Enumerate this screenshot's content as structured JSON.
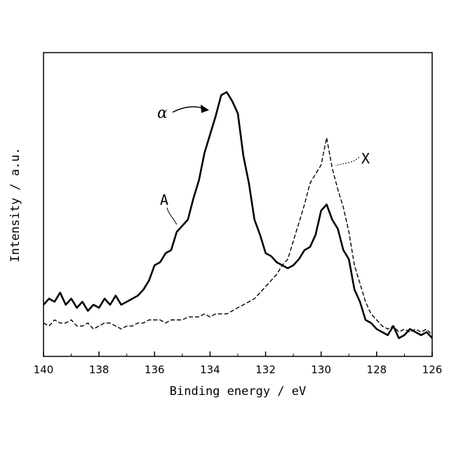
{
  "chart_data": {
    "type": "line",
    "xlabel": "Binding energy / eV",
    "ylabel": "Intensity / a.u.",
    "xlim": [
      140,
      126
    ],
    "ylim": [
      0,
      100
    ],
    "x_reversed": true,
    "x_ticks": [
      "140",
      "138",
      "136",
      "134",
      "132",
      "130",
      "128",
      "126"
    ],
    "y_tick_labels": false,
    "grid": false,
    "series": [
      {
        "label": "A",
        "style": "solid",
        "color": "#000000",
        "x": [
          140.0,
          139.8,
          139.6,
          139.4,
          139.2,
          139.0,
          138.8,
          138.6,
          138.4,
          138.2,
          138.0,
          137.8,
          137.6,
          137.4,
          137.2,
          137.0,
          136.8,
          136.6,
          136.4,
          136.2,
          136.0,
          135.8,
          135.6,
          135.4,
          135.2,
          135.0,
          134.8,
          134.6,
          134.4,
          134.2,
          134.0,
          133.8,
          133.6,
          133.4,
          133.2,
          133.0,
          132.8,
          132.6,
          132.4,
          132.2,
          132.0,
          131.8,
          131.6,
          131.4,
          131.2,
          131.0,
          130.8,
          130.6,
          130.4,
          130.2,
          130.0,
          129.8,
          129.6,
          129.4,
          129.2,
          129.0,
          128.8,
          128.6,
          128.4,
          128.2,
          128.0,
          127.8,
          127.6,
          127.4,
          127.2,
          127.0,
          126.8,
          126.6,
          126.4,
          126.2,
          126.0
        ],
        "y": [
          17,
          19,
          18,
          21,
          17,
          19,
          16,
          18,
          15,
          17,
          16,
          19,
          17,
          20,
          17,
          18,
          19,
          20,
          22,
          25,
          30,
          31,
          34,
          35,
          41,
          43,
          45,
          52,
          58,
          67,
          73,
          79,
          86,
          87,
          84,
          80,
          66,
          57,
          45,
          40,
          34,
          33,
          31,
          30,
          29,
          30,
          32,
          35,
          36,
          40,
          48,
          50,
          45,
          42,
          35,
          32,
          22,
          18,
          12,
          11,
          9,
          8,
          7,
          10,
          6,
          7,
          9,
          8,
          7,
          8,
          6
        ]
      },
      {
        "label": "X",
        "style": "dashed",
        "color": "#000000",
        "x": [
          140.0,
          139.8,
          139.6,
          139.4,
          139.2,
          139.0,
          138.8,
          138.6,
          138.4,
          138.2,
          138.0,
          137.8,
          137.6,
          137.4,
          137.2,
          137.0,
          136.8,
          136.6,
          136.4,
          136.2,
          136.0,
          135.8,
          135.6,
          135.4,
          135.2,
          135.0,
          134.8,
          134.6,
          134.4,
          134.2,
          134.0,
          133.8,
          133.6,
          133.4,
          133.2,
          133.0,
          132.8,
          132.6,
          132.4,
          132.2,
          132.0,
          131.8,
          131.6,
          131.4,
          131.2,
          131.0,
          130.8,
          130.6,
          130.4,
          130.2,
          130.0,
          129.8,
          129.6,
          129.4,
          129.2,
          129.0,
          128.8,
          128.6,
          128.4,
          128.2,
          128.0,
          127.8,
          127.6,
          127.4,
          127.2,
          127.0,
          126.8,
          126.6,
          126.4,
          126.2,
          126.0
        ],
        "y": [
          11,
          10,
          12,
          11,
          11,
          12,
          10,
          10,
          11,
          9,
          10,
          11,
          11,
          10,
          9,
          10,
          10,
          11,
          11,
          12,
          12,
          12,
          11,
          12,
          12,
          12,
          13,
          13,
          13,
          14,
          13,
          14,
          14,
          14,
          15,
          16,
          17,
          18,
          19,
          21,
          23,
          25,
          27,
          30,
          32,
          38,
          44,
          50,
          57,
          60,
          63,
          72,
          62,
          55,
          49,
          41,
          30,
          24,
          18,
          14,
          12,
          10,
          9,
          10,
          8,
          9,
          8,
          9,
          8,
          9,
          7
        ]
      }
    ],
    "annotations": [
      {
        "text": "α",
        "target_series": "A",
        "x": 133.7,
        "y": 84
      },
      {
        "text": "A",
        "target_series": "A",
        "x": 135.2,
        "y": 43
      },
      {
        "text": "X",
        "target_series": "X",
        "x": 129.4,
        "y": 62
      }
    ]
  }
}
